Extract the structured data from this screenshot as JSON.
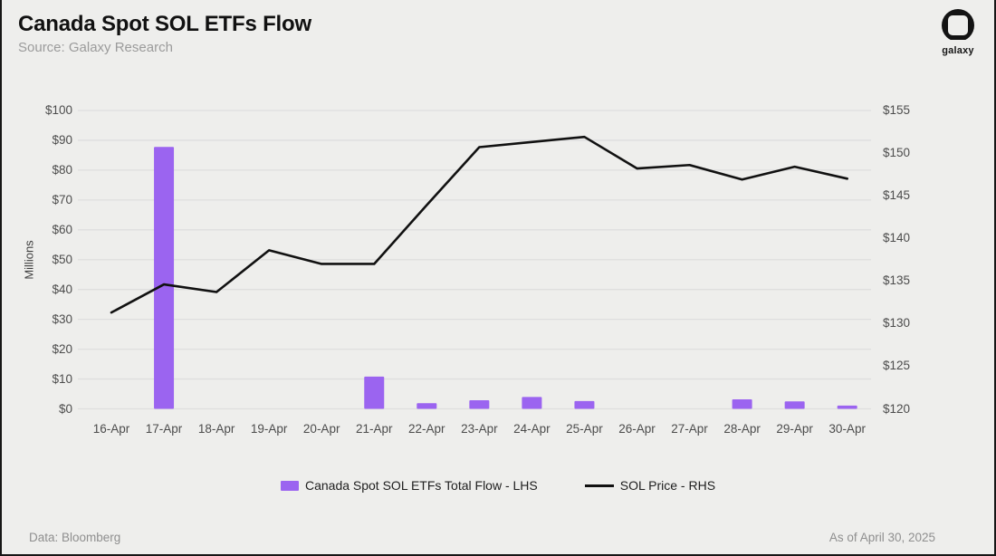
{
  "header": {
    "title": "Canada Spot SOL ETFs Flow",
    "source": "Source: Galaxy Research"
  },
  "logo": {
    "label": "galaxy"
  },
  "footer": {
    "left": "Data: Bloomberg",
    "right": "As of April 30, 2025"
  },
  "colors": {
    "background": "#eeeeec",
    "bar": "#9b64f0",
    "line": "#111111",
    "grid": "#dedede",
    "axis_text": "#4c4c4c",
    "muted_text": "#9b9b9b"
  },
  "chart_data": {
    "type": "bar",
    "title": "Canada Spot SOL ETFs Flow",
    "categories": [
      "16-Apr",
      "17-Apr",
      "18-Apr",
      "19-Apr",
      "20-Apr",
      "21-Apr",
      "22-Apr",
      "23-Apr",
      "24-Apr",
      "25-Apr",
      "26-Apr",
      "27-Apr",
      "28-Apr",
      "29-Apr",
      "30-Apr"
    ],
    "series": [
      {
        "name": "Canada Spot SOL ETFs Total Flow - LHS",
        "type": "bar",
        "axis": "left",
        "color": "#9b64f0",
        "values": [
          0,
          87.8,
          0,
          0,
          0,
          10.8,
          1.9,
          2.9,
          4.0,
          2.6,
          0,
          0,
          3.2,
          2.5,
          1.1
        ]
      },
      {
        "name": "SOL Price - RHS",
        "type": "line",
        "axis": "right",
        "color": "#111111",
        "values": [
          131.3,
          134.6,
          133.7,
          138.6,
          137.0,
          137.0,
          143.9,
          150.7,
          151.3,
          151.9,
          148.2,
          148.6,
          146.9,
          148.4,
          147.0
        ]
      }
    ],
    "left_axis": {
      "label": "Millions",
      "min": 0,
      "max": 100,
      "ticks": [
        "$100",
        "$90",
        "$80",
        "$70",
        "$60",
        "$50",
        "$40",
        "$30",
        "$20",
        "$10",
        "$0"
      ]
    },
    "right_axis": {
      "min": 120,
      "max": 155,
      "ticks": [
        "$155",
        "$150",
        "$145",
        "$140",
        "$135",
        "$130",
        "$125",
        "$120"
      ]
    },
    "grid": true,
    "legend_position": "bottom"
  }
}
